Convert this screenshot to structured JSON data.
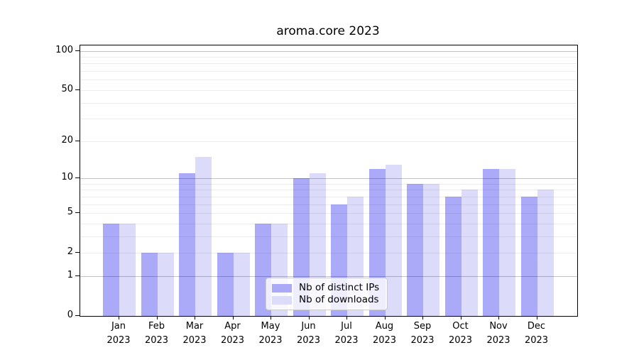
{
  "title": "aroma.core 2023",
  "colors": {
    "bar_distinct_ips": "#aaaaf9",
    "bar_downloads": "#dcdcfa",
    "grid_major": "#c3c3c3",
    "grid_minor": "#ececec",
    "axis": "#000000",
    "legend_border": "#cccccc"
  },
  "chart_data": {
    "type": "bar",
    "title": "aroma.core 2023",
    "categories": [
      "Jan 2023",
      "Feb 2023",
      "Mar 2023",
      "Apr 2023",
      "May 2023",
      "Jun 2023",
      "Jul 2023",
      "Aug 2023",
      "Sep 2023",
      "Oct 2023",
      "Nov 2023",
      "Dec 2023"
    ],
    "series": [
      {
        "name": "Nb of distinct IPs",
        "color": "#aaaaf9",
        "values": [
          4,
          2,
          11,
          2,
          4,
          10,
          6,
          12,
          9,
          7,
          12,
          7
        ]
      },
      {
        "name": "Nb of downloads",
        "color": "#dcdcfa",
        "values": [
          4,
          2,
          15,
          2,
          4,
          11,
          7,
          13,
          9,
          8,
          12,
          8
        ]
      }
    ],
    "xlabel": "",
    "ylabel": "",
    "yscale": "log1p",
    "yticks": [
      0,
      1,
      2,
      5,
      10,
      20,
      50,
      100
    ],
    "ylim": [
      0,
      110
    ],
    "grid": {
      "major_values": [
        1,
        10,
        100
      ],
      "minor_values": [
        2,
        3,
        4,
        5,
        6,
        7,
        8,
        9,
        20,
        30,
        40,
        50,
        60,
        70,
        80,
        90
      ]
    },
    "legend_position": "bottom-center"
  },
  "legend": {
    "items": [
      {
        "label": "Nb of distinct IPs",
        "color": "#aaaaf9"
      },
      {
        "label": "Nb of downloads",
        "color": "#dcdcfa"
      }
    ]
  }
}
